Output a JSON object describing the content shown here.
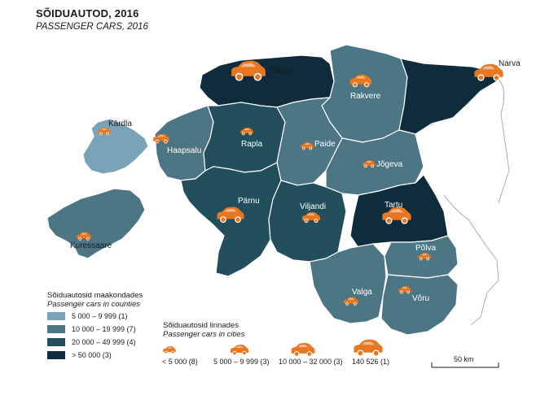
{
  "title": "SÕIDUAUTOD, 2016",
  "subtitle": "PASSENGER CARS, 2016",
  "colors": {
    "class1": "#7ba3b8",
    "class2": "#4d7685",
    "class3": "#234e5c",
    "class4": "#0e2c3b",
    "car": "#e87722",
    "border": "#ffffff",
    "outline": "#9a9a9a"
  },
  "counties_legend": {
    "heading": "Sõiduautosid maakondades",
    "heading_en": "Passenger cars in counties",
    "classes": [
      {
        "label": "5 000 –  9 999 (1)",
        "color": "#7ba3b8"
      },
      {
        "label": "10 000 – 19 999 (7)",
        "color": "#4d7685"
      },
      {
        "label": "20 000 – 49 999 (4)",
        "color": "#234e5c"
      },
      {
        "label": "> 50 000 (3)",
        "color": "#0e2c3b"
      }
    ]
  },
  "cities_legend": {
    "heading": "Sõiduautosid linnades",
    "heading_en": "Passenger cars in cities",
    "classes": [
      {
        "label": "< 5 000 (8)",
        "icon": "car-icon-small"
      },
      {
        "label": "5 000 – 9 999 (3)",
        "icon": "car-icon-medium"
      },
      {
        "label": "10 000 – 32 000 (3)",
        "icon": "car-icon-large"
      },
      {
        "label": "140 526 (1)",
        "icon": "car-icon-xlarge"
      }
    ]
  },
  "scale_bar": {
    "label": "50 km"
  },
  "cities": [
    {
      "name": "Tallinn",
      "size_class": "140 526"
    },
    {
      "name": "Narva",
      "size_class": "10 000 – 32 000"
    },
    {
      "name": "Rakvere",
      "size_class": "5 000 – 9 999"
    },
    {
      "name": "Kärdla",
      "size_class": "< 5 000"
    },
    {
      "name": "Haapsalu",
      "size_class": "5 000 – 9 999"
    },
    {
      "name": "Rapla",
      "size_class": "< 5 000"
    },
    {
      "name": "Paide",
      "size_class": "< 5 000"
    },
    {
      "name": "Jõgeva",
      "size_class": "< 5 000"
    },
    {
      "name": "Pärnu",
      "size_class": "10 000 – 32 000"
    },
    {
      "name": "Viljandi",
      "size_class": "5 000 – 9 999"
    },
    {
      "name": "Tartu",
      "size_class": "10 000 – 32 000"
    },
    {
      "name": "Kuressaare",
      "size_class": "< 5 000"
    },
    {
      "name": "Põlva",
      "size_class": "< 5 000"
    },
    {
      "name": "Valga",
      "size_class": "< 5 000"
    },
    {
      "name": "Võru",
      "size_class": "< 5 000"
    }
  ]
}
